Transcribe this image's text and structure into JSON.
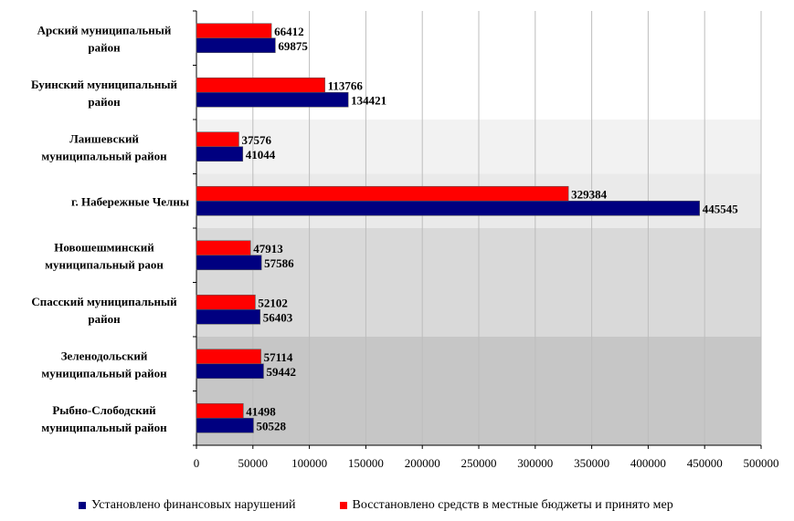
{
  "chart_data": {
    "type": "bar",
    "orientation": "horizontal",
    "title": "",
    "xlabel": "",
    "ylabel": "",
    "xlim": [
      0,
      500000
    ],
    "x_ticks": [
      0,
      50000,
      100000,
      150000,
      200000,
      250000,
      300000,
      350000,
      400000,
      450000,
      500000
    ],
    "grid": true,
    "legend_position": "bottom",
    "categories": [
      [
        "Арский муниципальный",
        "район"
      ],
      [
        "Буинский муниципальный",
        "район"
      ],
      [
        "Лаишевский",
        "муниципальный район"
      ],
      [
        "г. Набережные Челны"
      ],
      [
        "Новошешминский",
        "муниципальный раон"
      ],
      [
        "Спасский муниципальный",
        "район"
      ],
      [
        "Зеленодольский",
        "муниципальный район"
      ],
      [
        "Рыбно-Слободский",
        "муниципальный район"
      ]
    ],
    "series": [
      {
        "name": "Восстановлено средств в местные бюджеты и принято мер",
        "color": "#ff0000",
        "values": [
          66412,
          113766,
          37576,
          329384,
          47913,
          52102,
          57114,
          41498
        ]
      },
      {
        "name": "Установлено финансовых нарушений",
        "color": "#000080",
        "values": [
          69875,
          134421,
          41044,
          445545,
          57586,
          56403,
          59442,
          50528
        ]
      }
    ],
    "legend": [
      {
        "name": "Установлено финансовых нарушений",
        "color": "#000080"
      },
      {
        "name": "Восстановлено средств в местные бюджеты и принято мер",
        "color": "#ff0000"
      }
    ],
    "band_colors": [
      "#ffffff",
      "#ffffff",
      "#f2f2f2",
      "#eaeaea",
      "#d9d9d9",
      "#d9d9d9",
      "#c6c6c6",
      "#c6c6c6"
    ]
  }
}
